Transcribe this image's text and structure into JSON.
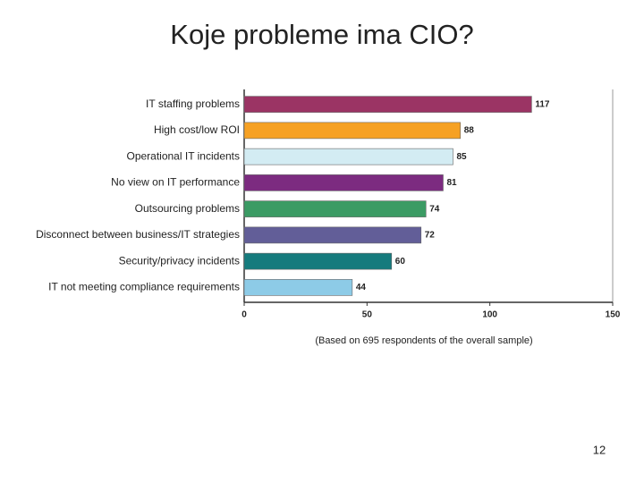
{
  "slide": {
    "title": "Koje probleme ima CIO?",
    "page_number": 12
  },
  "chart_data": {
    "type": "bar",
    "orientation": "horizontal",
    "categories": [
      "IT staffing problems",
      "High cost/low ROI",
      "Operational IT incidents",
      "No view on IT performance",
      "Outsourcing problems",
      "Disconnect between business/IT strategies",
      "Security/privacy incidents",
      "IT not meeting compliance requirements"
    ],
    "values": [
      117,
      88,
      85,
      81,
      74,
      72,
      60,
      44
    ],
    "colors": [
      "#9b3464",
      "#f6a124",
      "#d3ecf3",
      "#7c2b80",
      "#3b9b64",
      "#625e98",
      "#157b7d",
      "#8dcbe7"
    ],
    "xlim": [
      0,
      150
    ],
    "xticks": [
      0,
      50,
      100,
      150
    ],
    "note": "(Based on 695 respondents of the overall sample)"
  }
}
